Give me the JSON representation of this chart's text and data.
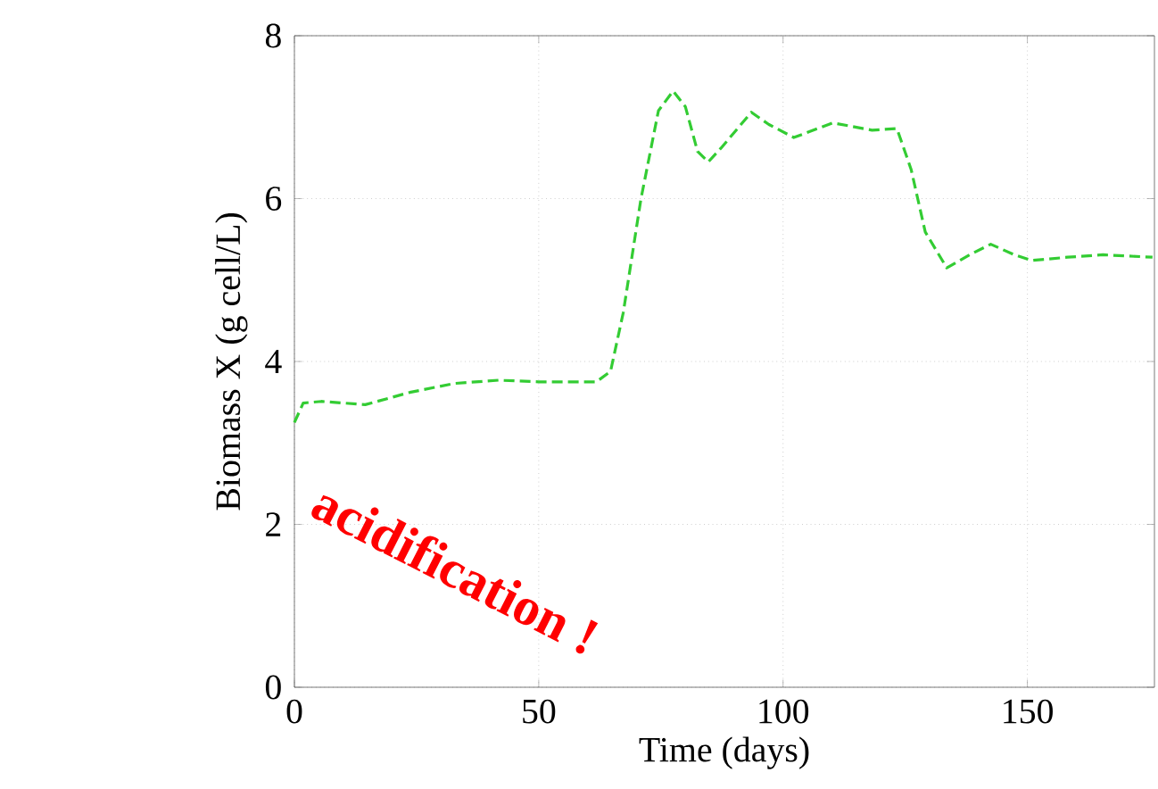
{
  "chart_data": {
    "type": "line",
    "xlabel": "Time (days)",
    "ylabel": "Biomass X (g cell/L)",
    "annotations": [
      "acidification !"
    ],
    "x": [
      0,
      1.8,
      5.5,
      14.5,
      23.6,
      32.7,
      41.8,
      50,
      61.8,
      64.7,
      67.3,
      70.9,
      74.5,
      77.5,
      80,
      82.5,
      84.7,
      87.3,
      93.5,
      97.1,
      102.2,
      110.2,
      118.2,
      123.3,
      126.2,
      129.1,
      133.5,
      138.2,
      142.5,
      147.3,
      150.9,
      158.2,
      165.5,
      175.6
    ],
    "series": [
      {
        "color": "#33cc33",
        "values": [
          3.25,
          3.49,
          3.51,
          3.47,
          3.62,
          3.73,
          3.77,
          3.75,
          3.75,
          3.88,
          4.6,
          5.99,
          7.08,
          7.32,
          7.13,
          6.58,
          6.45,
          6.62,
          7.06,
          6.91,
          6.75,
          6.93,
          6.84,
          6.86,
          6.36,
          5.59,
          5.15,
          5.31,
          5.44,
          5.31,
          5.24,
          5.28,
          5.31,
          5.28
        ]
      }
    ],
    "xlim": [
      0,
      176
    ],
    "ylim": [
      0,
      8
    ],
    "xticks": [
      0,
      50,
      100,
      150
    ],
    "yticks": [
      0,
      2,
      4,
      6,
      8
    ],
    "grid": true,
    "marker": "none",
    "line_style": "dashed"
  }
}
